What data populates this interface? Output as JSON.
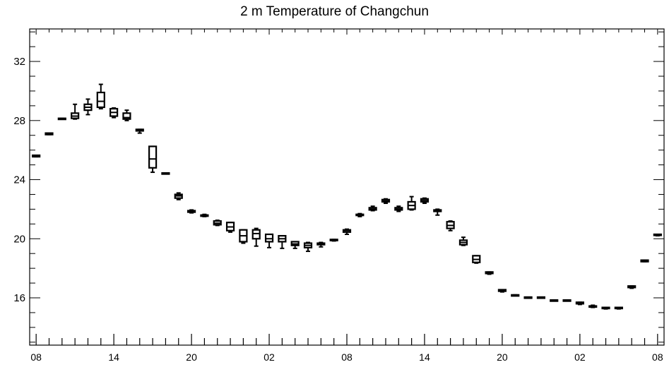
{
  "chart_data": {
    "type": "box",
    "title": "2 m Temperature of Changchun",
    "xlabel": "",
    "ylabel": "",
    "ylim": [
      12.8,
      34.2
    ],
    "yticks": [
      16,
      20,
      24,
      28,
      32
    ],
    "x_tick_labels": [
      "08",
      "14",
      "20",
      "02",
      "08",
      "14",
      "20",
      "02",
      "08"
    ],
    "x_tick_steps": [
      0,
      6,
      12,
      18,
      24,
      30,
      36,
      42,
      48
    ],
    "grid": false,
    "legend": "none",
    "boxes": [
      {
        "step": 0,
        "min": 25.55,
        "q1": 25.55,
        "median": 25.6,
        "q3": 25.65,
        "max": 25.65
      },
      {
        "step": 1,
        "min": 27.05,
        "q1": 27.05,
        "median": 27.1,
        "q3": 27.15,
        "max": 27.15
      },
      {
        "step": 2,
        "min": 28.1,
        "q1": 28.1,
        "median": 28.1,
        "q3": 28.15,
        "max": 28.15
      },
      {
        "step": 3,
        "min": 28.1,
        "q1": 28.15,
        "median": 28.3,
        "q3": 28.5,
        "max": 29.1
      },
      {
        "step": 4,
        "min": 28.4,
        "q1": 28.7,
        "median": 28.9,
        "q3": 29.1,
        "max": 29.45
      },
      {
        "step": 5,
        "min": 28.8,
        "q1": 28.9,
        "median": 29.3,
        "q3": 29.9,
        "max": 30.45
      },
      {
        "step": 6,
        "min": 28.2,
        "q1": 28.3,
        "median": 28.55,
        "q3": 28.8,
        "max": 28.85
      },
      {
        "step": 7,
        "min": 28.0,
        "q1": 28.1,
        "median": 28.2,
        "q3": 28.5,
        "max": 28.7
      },
      {
        "step": 8,
        "min": 27.15,
        "q1": 27.3,
        "median": 27.35,
        "q3": 27.4,
        "max": 27.4
      },
      {
        "step": 9,
        "min": 24.5,
        "q1": 24.8,
        "median": 25.4,
        "q3": 26.25,
        "max": 26.25
      },
      {
        "step": 10,
        "min": 24.4,
        "q1": 24.4,
        "median": 24.4,
        "q3": 24.45,
        "max": 24.45
      },
      {
        "step": 11,
        "min": 22.65,
        "q1": 22.75,
        "median": 22.9,
        "q3": 23.0,
        "max": 23.1
      },
      {
        "step": 12,
        "min": 21.75,
        "q1": 21.8,
        "median": 21.85,
        "q3": 21.9,
        "max": 21.95
      },
      {
        "step": 13,
        "min": 21.5,
        "q1": 21.55,
        "median": 21.6,
        "q3": 21.6,
        "max": 21.65
      },
      {
        "step": 14,
        "min": 20.9,
        "q1": 20.95,
        "median": 21.05,
        "q3": 21.2,
        "max": 21.25
      },
      {
        "step": 15,
        "min": 20.45,
        "q1": 20.55,
        "median": 20.8,
        "q3": 21.1,
        "max": 21.1
      },
      {
        "step": 16,
        "min": 19.7,
        "q1": 19.8,
        "median": 20.2,
        "q3": 20.6,
        "max": 20.6
      },
      {
        "step": 17,
        "min": 19.5,
        "q1": 20.0,
        "median": 20.35,
        "q3": 20.6,
        "max": 20.7
      },
      {
        "step": 18,
        "min": 19.4,
        "q1": 19.8,
        "median": 20.0,
        "q3": 20.3,
        "max": 20.3
      },
      {
        "step": 19,
        "min": 19.35,
        "q1": 19.8,
        "median": 20.0,
        "q3": 20.2,
        "max": 20.2
      },
      {
        "step": 20,
        "min": 19.35,
        "q1": 19.55,
        "median": 19.65,
        "q3": 19.8,
        "max": 19.8
      },
      {
        "step": 21,
        "min": 19.15,
        "q1": 19.4,
        "median": 19.55,
        "q3": 19.7,
        "max": 19.75
      },
      {
        "step": 22,
        "min": 19.45,
        "q1": 19.6,
        "median": 19.65,
        "q3": 19.7,
        "max": 19.75
      },
      {
        "step": 23,
        "min": 19.85,
        "q1": 19.9,
        "median": 19.9,
        "q3": 19.95,
        "max": 19.95
      },
      {
        "step": 24,
        "min": 20.3,
        "q1": 20.45,
        "median": 20.55,
        "q3": 20.6,
        "max": 20.65
      },
      {
        "step": 25,
        "min": 21.5,
        "q1": 21.6,
        "median": 21.6,
        "q3": 21.65,
        "max": 21.7
      },
      {
        "step": 26,
        "min": 21.9,
        "q1": 21.95,
        "median": 22.0,
        "q3": 22.1,
        "max": 22.2
      },
      {
        "step": 27,
        "min": 22.4,
        "q1": 22.5,
        "median": 22.55,
        "q3": 22.65,
        "max": 22.7
      },
      {
        "step": 28,
        "min": 21.85,
        "q1": 21.95,
        "median": 22.0,
        "q3": 22.1,
        "max": 22.2
      },
      {
        "step": 29,
        "min": 21.95,
        "q1": 22.0,
        "median": 22.25,
        "q3": 22.5,
        "max": 22.85
      },
      {
        "step": 30,
        "min": 22.4,
        "q1": 22.5,
        "median": 22.6,
        "q3": 22.7,
        "max": 22.75
      },
      {
        "step": 31,
        "min": 21.6,
        "q1": 21.85,
        "median": 21.9,
        "q3": 21.95,
        "max": 22.0
      },
      {
        "step": 32,
        "min": 20.55,
        "q1": 20.7,
        "median": 20.9,
        "q3": 21.15,
        "max": 21.2
      },
      {
        "step": 33,
        "min": 19.55,
        "q1": 19.6,
        "median": 19.75,
        "q3": 19.9,
        "max": 20.1
      },
      {
        "step": 34,
        "min": 18.35,
        "q1": 18.4,
        "median": 18.6,
        "q3": 18.85,
        "max": 18.85
      },
      {
        "step": 35,
        "min": 17.6,
        "q1": 17.65,
        "median": 17.7,
        "q3": 17.75,
        "max": 17.75
      },
      {
        "step": 36,
        "min": 16.4,
        "q1": 16.45,
        "median": 16.5,
        "q3": 16.55,
        "max": 16.55
      },
      {
        "step": 37,
        "min": 16.15,
        "q1": 16.15,
        "median": 16.15,
        "q3": 16.2,
        "max": 16.2
      },
      {
        "step": 38,
        "min": 16.0,
        "q1": 16.0,
        "median": 16.05,
        "q3": 16.05,
        "max": 16.05
      },
      {
        "step": 39,
        "min": 16.0,
        "q1": 16.0,
        "median": 16.05,
        "q3": 16.05,
        "max": 16.05
      },
      {
        "step": 40,
        "min": 15.8,
        "q1": 15.8,
        "median": 15.85,
        "q3": 15.85,
        "max": 15.85
      },
      {
        "step": 41,
        "min": 15.8,
        "q1": 15.8,
        "median": 15.85,
        "q3": 15.85,
        "max": 15.85
      },
      {
        "step": 42,
        "min": 15.55,
        "q1": 15.6,
        "median": 15.65,
        "q3": 15.7,
        "max": 15.7
      },
      {
        "step": 43,
        "min": 15.35,
        "q1": 15.4,
        "median": 15.45,
        "q3": 15.45,
        "max": 15.5
      },
      {
        "step": 44,
        "min": 15.25,
        "q1": 15.3,
        "median": 15.3,
        "q3": 15.35,
        "max": 15.35
      },
      {
        "step": 45,
        "min": 15.25,
        "q1": 15.3,
        "median": 15.3,
        "q3": 15.35,
        "max": 15.35
      },
      {
        "step": 46,
        "min": 16.65,
        "q1": 16.7,
        "median": 16.75,
        "q3": 16.8,
        "max": 16.8
      },
      {
        "step": 47,
        "min": 18.45,
        "q1": 18.45,
        "median": 18.5,
        "q3": 18.55,
        "max": 18.55
      },
      {
        "step": 48,
        "min": 20.2,
        "q1": 20.25,
        "median": 20.25,
        "q3": 20.3,
        "max": 20.3
      }
    ]
  }
}
